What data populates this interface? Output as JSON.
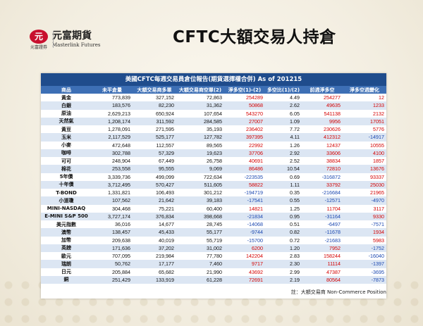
{
  "header": {
    "logo_mark": "元",
    "logo_sub": "元富證券",
    "logo_name": "元富期貨",
    "logo_en": "Masterlink Futures",
    "title": "CFTC大額交易人持倉"
  },
  "table": {
    "caption": "美國CFTC每週交易員倉位報告(期貨選擇權合併) As of  201215",
    "columns": [
      "商品",
      "未平倉量",
      "大額交易商多單",
      "大額交易商空單(2)",
      "淨多空(1)-(2)",
      "多空比(1)/(2)",
      "前週淨多空",
      "淨多空週變化"
    ],
    "rows": [
      [
        "黃金",
        "773,839",
        "327,152",
        "72,863",
        "254289",
        "4.49",
        "254277",
        "12"
      ],
      [
        "白銀",
        "183,576",
        "82,230",
        "31,362",
        "50868",
        "2.62",
        "49635",
        "1233"
      ],
      [
        "原油",
        "2,629,213",
        "650,924",
        "107,654",
        "543270",
        "6.05",
        "541138",
        "2132"
      ],
      [
        "天然氣",
        "1,208,174",
        "311,592",
        "284,585",
        "27007",
        "1.09",
        "9956",
        "17051"
      ],
      [
        "黃豆",
        "1,278,091",
        "271,595",
        "35,193",
        "236402",
        "7.72",
        "230626",
        "5776"
      ],
      [
        "玉米",
        "2,117,529",
        "525,177",
        "127,782",
        "397395",
        "4.11",
        "412312",
        "-14917"
      ],
      [
        "小麥",
        "472,648",
        "112,557",
        "89,565",
        "22992",
        "1.26",
        "12437",
        "10555"
      ],
      [
        "咖啡",
        "302,788",
        "57,329",
        "19,623",
        "37706",
        "2.92",
        "33606",
        "4100"
      ],
      [
        "可可",
        "248,904",
        "67,449",
        "26,758",
        "40691",
        "2.52",
        "38834",
        "1857"
      ],
      [
        "棉花",
        "253,558",
        "95,555",
        "9,069",
        "86486",
        "10.54",
        "72810",
        "13676"
      ],
      [
        "5年債",
        "3,339,736",
        "499,099",
        "722,634",
        "-223535",
        "0.69",
        "-316872",
        "93337"
      ],
      [
        "十年債",
        "3,712,495",
        "570,427",
        "511,605",
        "58822",
        "1.11",
        "33792",
        "25030"
      ],
      [
        "T-BOND",
        "1,331,821",
        "106,493",
        "301,212",
        "-194719",
        "0.35",
        "-216684",
        "21965"
      ],
      [
        "小道瓊",
        "107,562",
        "21,642",
        "39,183",
        "-17541",
        "0.55",
        "-12571",
        "-4970"
      ],
      [
        "MINI-NASDAQ",
        "304,468",
        "75,221",
        "60,400",
        "14821",
        "1.25",
        "11704",
        "3117"
      ],
      [
        "E-MINI S&P 500",
        "3,727,174",
        "376,834",
        "398,668",
        "-21834",
        "0.95",
        "-31164",
        "9330"
      ],
      [
        "美元指數",
        "36,016",
        "14,677",
        "28,745",
        "-14068",
        "0.51",
        "-6497",
        "-7571"
      ],
      [
        "澳幣",
        "138,457",
        "45,433",
        "55,177",
        "-9744",
        "0.82",
        "-11678",
        "1934"
      ],
      [
        "加幣",
        "209,638",
        "40,019",
        "55,719",
        "-15700",
        "0.72",
        "-21683",
        "5983"
      ],
      [
        "英鎊",
        "171,636",
        "37,202",
        "31,002",
        "6200",
        "1.20",
        "7952",
        "-1752"
      ],
      [
        "歐元",
        "707,095",
        "219,984",
        "77,780",
        "142204",
        "2.83",
        "158244",
        "-16040"
      ],
      [
        "瑞朗",
        "50,762",
        "17,177",
        "7,460",
        "9717",
        "2.30",
        "11114",
        "-1397"
      ],
      [
        "日元",
        "205,884",
        "65,682",
        "21,990",
        "43692",
        "2.99",
        "47387",
        "-3695"
      ],
      [
        "銅",
        "251,429",
        "133,919",
        "61,228",
        "72691",
        "2.19",
        "80564",
        "-7873"
      ]
    ]
  },
  "note": "註：大額交易商 Non-Commerce Position",
  "colors": {
    "header_bg": "#1f4c8c",
    "subheader_bg": "#3d6fb5",
    "row_alt": "#dce6f3",
    "positive": "#d40000",
    "negative": "#1a47b0",
    "brand_red": "#c8102e"
  }
}
